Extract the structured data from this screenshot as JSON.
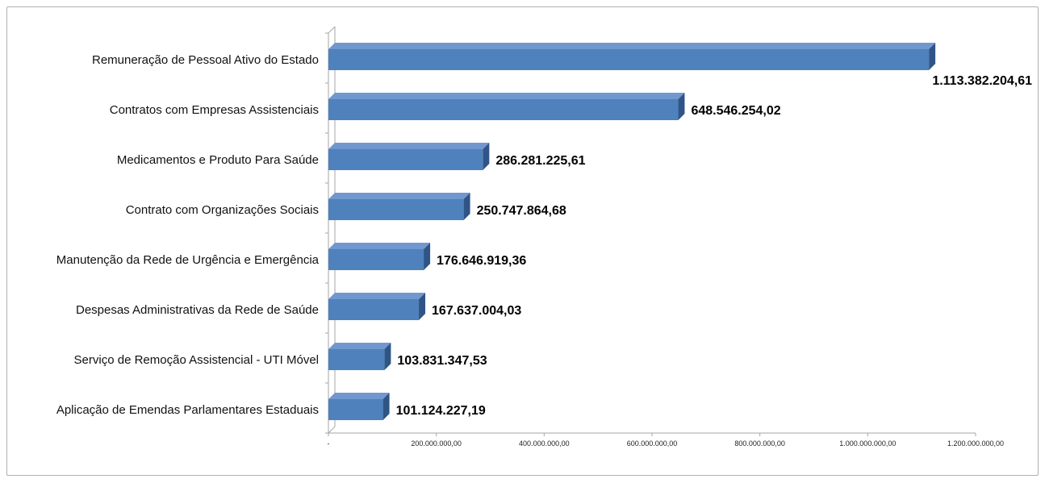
{
  "chart_data": {
    "type": "bar",
    "orientation": "horizontal",
    "three_d": true,
    "categories": [
      "Remuneração de Pessoal Ativo do Estado",
      "Contratos com Empresas Assistenciais",
      "Medicamentos e Produto Para Saúde",
      "Contrato com Organizações Sociais",
      "Manutenção da Rede de Urgência e Emergência",
      "Despesas Administrativas da Rede de Saúde",
      "Serviço de Remoção Assistencial - UTI Móvel",
      "Aplicação de Emendas Parlamentares Estaduais"
    ],
    "values": [
      1113382204.61,
      648546254.02,
      286281225.61,
      250747864.68,
      176646919.36,
      167637004.03,
      103831347.53,
      101124227.19
    ],
    "value_labels": [
      "1.113.382.204,61",
      "648.546.254,02",
      "286.281.225,61",
      "250.747.864,68",
      "176.646.919,36",
      "167.637.004,03",
      "103.831.347,53",
      "101.124.227,19"
    ],
    "xlim": [
      0,
      1200000000
    ],
    "x_ticks": [
      0,
      200000000,
      400000000,
      600000000,
      800000000,
      1000000000,
      1200000000
    ],
    "x_tick_labels": [
      "-",
      "200.000.000,00",
      "400.000.000,00",
      "600.000.000,00",
      "800.000.000,00",
      "1.000.000.000,00",
      "1.200.000.000,00"
    ],
    "xlabel": "",
    "ylabel": "",
    "grid": false,
    "legend": "none",
    "colors": {
      "bar_front": "#4f81bd",
      "bar_top": "#7197cf",
      "bar_side": "#2f5586",
      "axis": "#a6a6a6"
    }
  }
}
